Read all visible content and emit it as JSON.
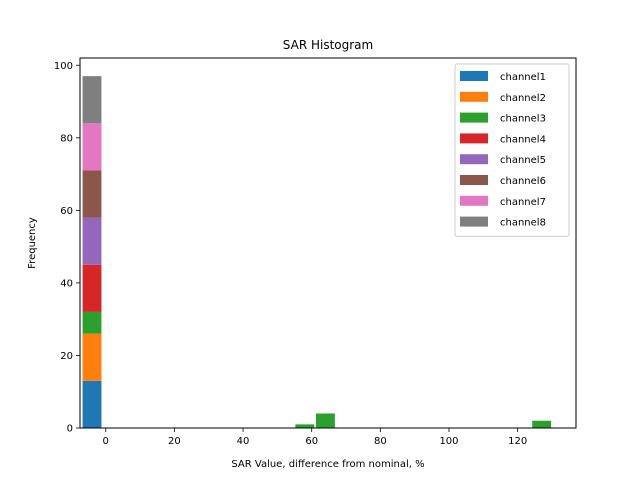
{
  "chart_data": {
    "type": "bar",
    "title": "SAR Histogram",
    "xlabel": "SAR Value, difference from nominal, %",
    "ylabel": "Frequency",
    "xlim": [
      -7.5,
      137
    ],
    "ylim": [
      0,
      102
    ],
    "x_ticks": [
      0,
      20,
      40,
      60,
      80,
      100,
      120
    ],
    "y_ticks": [
      0,
      20,
      40,
      60,
      80,
      100
    ],
    "stacked": true,
    "bin_width": 5.5,
    "legend_position": "top-right",
    "grid": false,
    "series": [
      {
        "name": "channel1",
        "color": "#1f77b4",
        "bins": [
          {
            "x": -4,
            "y": 13
          }
        ]
      },
      {
        "name": "channel2",
        "color": "#ff7f0e",
        "bins": [
          {
            "x": -4,
            "y": 13
          }
        ]
      },
      {
        "name": "channel3",
        "color": "#2ca02c",
        "bins": [
          {
            "x": -4,
            "y": 6
          },
          {
            "x": 58,
            "y": 1
          },
          {
            "x": 64,
            "y": 4
          },
          {
            "x": 127,
            "y": 2
          }
        ]
      },
      {
        "name": "channel4",
        "color": "#d62728",
        "bins": [
          {
            "x": -4,
            "y": 13
          }
        ]
      },
      {
        "name": "channel5",
        "color": "#9467bd",
        "bins": [
          {
            "x": -4,
            "y": 13
          }
        ]
      },
      {
        "name": "channel6",
        "color": "#8c564b",
        "bins": [
          {
            "x": -4,
            "y": 13
          }
        ]
      },
      {
        "name": "channel7",
        "color": "#e377c2",
        "bins": [
          {
            "x": -4,
            "y": 13
          }
        ]
      },
      {
        "name": "channel8",
        "color": "#7f7f7f",
        "bins": [
          {
            "x": -4,
            "y": 13
          }
        ]
      }
    ]
  }
}
